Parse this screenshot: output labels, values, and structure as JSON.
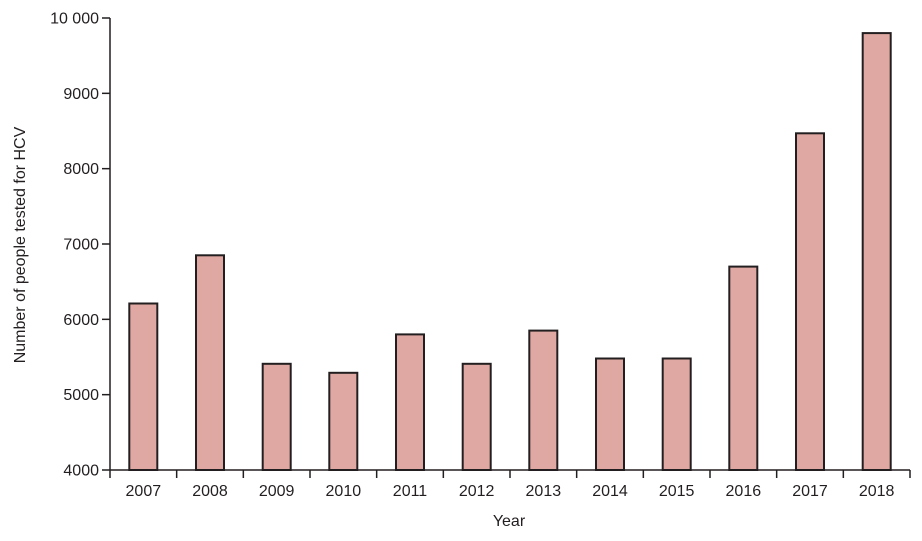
{
  "chart_data": {
    "type": "bar",
    "title": "",
    "xlabel": "Year",
    "ylabel": "Number of people tested for HCV",
    "categories": [
      "2007",
      "2008",
      "2009",
      "2010",
      "2011",
      "2012",
      "2013",
      "2014",
      "2015",
      "2016",
      "2017",
      "2018"
    ],
    "values": [
      6210,
      6850,
      5410,
      5290,
      5800,
      5410,
      5850,
      5480,
      5480,
      6700,
      8470,
      9800
    ],
    "ylim": [
      4000,
      10000
    ],
    "yticks": [
      4000,
      5000,
      6000,
      7000,
      8000,
      9000,
      10000
    ],
    "ytick_labels": [
      "4000",
      "5000",
      "6000",
      "7000",
      "8000",
      "9000",
      "10 000"
    ],
    "grid": false,
    "legend": "none",
    "colors": {
      "bar_fill": "#e0a8a2",
      "bar_stroke": "#231f20",
      "axis": "#231f20",
      "text": "#231f20"
    }
  }
}
